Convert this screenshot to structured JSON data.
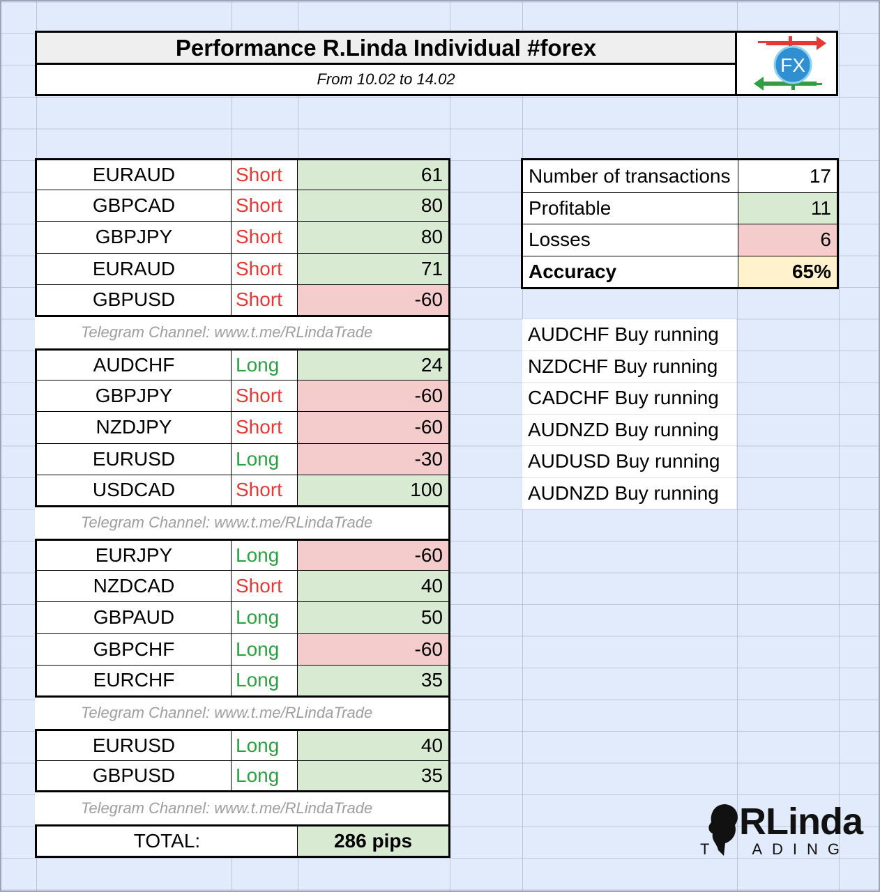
{
  "header": {
    "title": "Performance R.Linda Individual #forex",
    "subtitle": "From 10.02 to 14.02",
    "logo_text": "FX"
  },
  "colors": {
    "short": "#e53935",
    "long": "#2ea043",
    "profit_bg": "#d9ead3",
    "loss_bg": "#f4cccc",
    "accuracy_bg": "#fff2cc",
    "sheet_bg": "#e2ebfb"
  },
  "trade_groups": [
    [
      {
        "pair": "EURAUD",
        "direction": "Short",
        "pips": "61"
      },
      {
        "pair": "GBPCAD",
        "direction": "Short",
        "pips": "80"
      },
      {
        "pair": "GBPJPY",
        "direction": "Short",
        "pips": "80"
      },
      {
        "pair": "EURAUD",
        "direction": "Short",
        "pips": "71"
      },
      {
        "pair": "GBPUSD",
        "direction": "Short",
        "pips": "-60"
      }
    ],
    [
      {
        "pair": "AUDCHF",
        "direction": "Long",
        "pips": "24"
      },
      {
        "pair": "GBPJPY",
        "direction": "Short",
        "pips": "-60"
      },
      {
        "pair": "NZDJPY",
        "direction": "Short",
        "pips": "-60"
      },
      {
        "pair": "EURUSD",
        "direction": "Long",
        "pips": "-30"
      },
      {
        "pair": "USDCAD",
        "direction": "Short",
        "pips": "100"
      }
    ],
    [
      {
        "pair": "EURJPY",
        "direction": "Long",
        "pips": "-60"
      },
      {
        "pair": "NZDCAD",
        "direction": "Short",
        "pips": "40"
      },
      {
        "pair": "GBPAUD",
        "direction": "Long",
        "pips": "50"
      },
      {
        "pair": "GBPCHF",
        "direction": "Long",
        "pips": "-60"
      },
      {
        "pair": "EURCHF",
        "direction": "Long",
        "pips": "35"
      }
    ],
    [
      {
        "pair": "EURUSD",
        "direction": "Long",
        "pips": "40"
      },
      {
        "pair": "GBPUSD",
        "direction": "Long",
        "pips": "35"
      }
    ]
  ],
  "telegram_text": "Telegram Channel:  www.t.me/RLindaTrade",
  "total": {
    "label": "TOTAL:",
    "value": "286 pips"
  },
  "stats": [
    {
      "label": "Number of transactions",
      "value": "17",
      "style": "white"
    },
    {
      "label": "Profitable",
      "value": "11",
      "style": "green"
    },
    {
      "label": "Losses",
      "value": "6",
      "style": "red"
    },
    {
      "label": "Accuracy",
      "value": "65%",
      "style": "yellow"
    }
  ],
  "running": [
    "AUDCHF Buy running",
    "NZDCHF Buy running",
    "CADCHF Buy running",
    "AUDNZD Buy running",
    "AUDUSD Buy running",
    "AUDNZD Buy running"
  ],
  "brand": {
    "name": "RLinda",
    "tagline_left": "T",
    "tagline_right": "ADING"
  }
}
